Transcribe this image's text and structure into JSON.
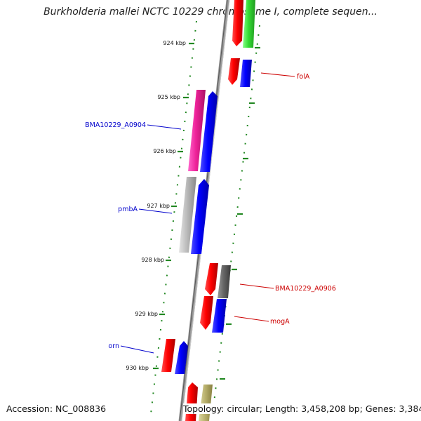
{
  "title": "Burkholderia mallei NCTC 10229 chromosome I, complete sequen...",
  "footer": {
    "accession": "Accession: NC_008836",
    "topology": "Topology: circular; Length: 3,458,208 bp; Genes: 3,384"
  },
  "ticks": [
    "924 kbp",
    "925 kbp",
    "926 kbp",
    "927 kbp",
    "928 kbp",
    "929 kbp",
    "930 kbp"
  ],
  "gene_labels": [
    {
      "name": "folA",
      "color": "#cc0000",
      "side": "right"
    },
    {
      "name": "BMA10229_A0904",
      "color": "#0000cc",
      "side": "left"
    },
    {
      "name": "pmbA",
      "color": "#0000cc",
      "side": "left"
    },
    {
      "name": "BMA10229_A0906",
      "color": "#cc0000",
      "side": "right"
    },
    {
      "name": "mogA",
      "color": "#cc0000",
      "side": "right"
    },
    {
      "name": "orn",
      "color": "#0000cc",
      "side": "left"
    }
  ],
  "colors": {
    "forward_strand": "#0000ee",
    "reverse_strand": "#ee0000",
    "tick_marks": "#228822",
    "backbone": "#888888"
  }
}
